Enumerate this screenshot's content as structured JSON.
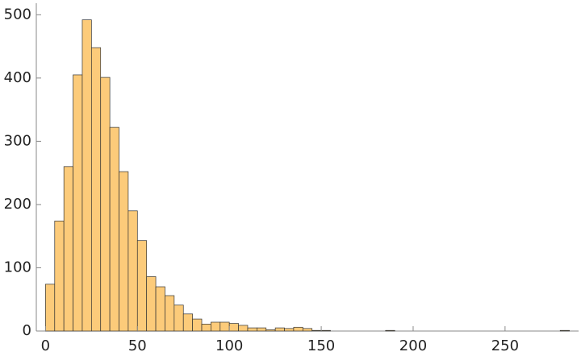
{
  "chart_data": {
    "type": "histogram",
    "color": "#fccb7a",
    "bins": [
      0,
      5,
      10,
      15,
      20,
      25,
      30,
      35,
      40,
      45,
      50,
      55,
      60,
      65,
      70,
      75,
      80,
      85,
      90,
      95,
      100,
      105,
      110,
      115,
      120,
      125,
      130,
      135,
      140,
      145,
      150,
      155,
      160,
      165,
      170,
      175,
      180,
      185,
      190,
      195,
      200,
      205,
      210,
      215,
      220,
      225,
      230,
      235,
      240,
      245,
      250,
      255,
      260,
      265,
      270,
      275,
      280,
      285
    ],
    "values": [
      74,
      174,
      260,
      405,
      492,
      448,
      401,
      322,
      252,
      190,
      143,
      86,
      70,
      56,
      41,
      27,
      19,
      11,
      14,
      14,
      12,
      9,
      5,
      5,
      2,
      5,
      4,
      6,
      4,
      1,
      1,
      0,
      0,
      0,
      0,
      0,
      0,
      1,
      0,
      0,
      0,
      0,
      0,
      0,
      0,
      0,
      0,
      0,
      0,
      0,
      0,
      0,
      0,
      0,
      0,
      0,
      1
    ],
    "xlim": [
      -5,
      290
    ],
    "ylim": [
      0,
      517
    ],
    "xticks": [
      0,
      50,
      100,
      150,
      200,
      250
    ],
    "yticks": [
      0,
      100,
      200,
      300,
      400,
      500
    ]
  }
}
